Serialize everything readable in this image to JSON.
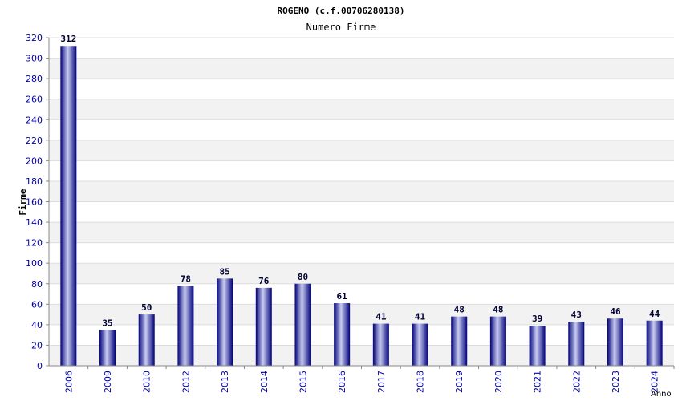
{
  "chart_data": {
    "type": "bar",
    "title": "ROGENO (c.f.00706280138)",
    "subtitle": "Numero Firme",
    "xlabel": "Anno",
    "ylabel": "Firme",
    "categories": [
      "2006",
      "2009",
      "2010",
      "2012",
      "2013",
      "2014",
      "2015",
      "2016",
      "2017",
      "2018",
      "2019",
      "2020",
      "2021",
      "2022",
      "2023",
      "2024"
    ],
    "values": [
      312,
      35,
      50,
      78,
      85,
      76,
      80,
      61,
      41,
      41,
      48,
      48,
      39,
      43,
      46,
      44
    ],
    "ylim": [
      0,
      320
    ],
    "yticks": [
      0,
      20,
      40,
      60,
      80,
      100,
      120,
      140,
      160,
      180,
      200,
      220,
      240,
      260,
      280,
      300,
      320
    ],
    "grid": true,
    "legend": "none",
    "colors": {
      "bar_dark": "#00007a",
      "bar_light": "#c8ccf0",
      "band": "#f2f2f2",
      "tick_text": "#0000a8"
    }
  }
}
